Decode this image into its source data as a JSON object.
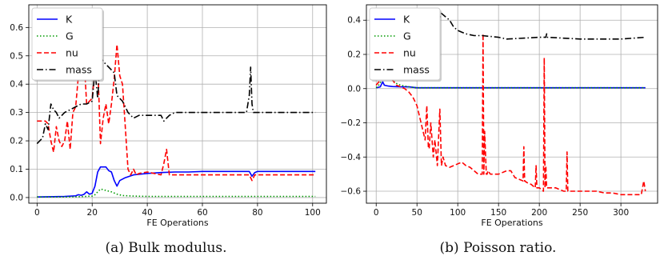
{
  "captions": [
    "(a) Bulk modulus.",
    "(b) Poisson ratio."
  ],
  "chart_data": [
    {
      "type": "line",
      "title": "",
      "xlabel": "FE Operations",
      "ylabel": "",
      "xlim": [
        -3,
        105
      ],
      "ylim": [
        -0.02,
        0.68
      ],
      "xticks": [
        0,
        20,
        40,
        60,
        80,
        100
      ],
      "yticks": [
        0.0,
        0.1,
        0.2,
        0.3,
        0.4,
        0.5,
        0.6
      ],
      "xtick_labels": [
        "0",
        "20",
        "40",
        "60",
        "80",
        "100"
      ],
      "ytick_labels": [
        "0.0",
        "0.1",
        "0.2",
        "0.3",
        "0.4",
        "0.5",
        "0.6"
      ],
      "grid": true,
      "legend": "top-left",
      "series": [
        {
          "name": "K",
          "color": "#0000ff",
          "style": "solid",
          "x": [
            0,
            10,
            14,
            15,
            16,
            17,
            18,
            19,
            20,
            21,
            22,
            23,
            25,
            26,
            27,
            28,
            29,
            30,
            32,
            35,
            40,
            45,
            50,
            55,
            60,
            65,
            70,
            75,
            77,
            78,
            79,
            80,
            85,
            90,
            95,
            100,
            101
          ],
          "y": [
            0.002,
            0.004,
            0.006,
            0.01,
            0.008,
            0.011,
            0.02,
            0.012,
            0.015,
            0.04,
            0.09,
            0.108,
            0.108,
            0.095,
            0.09,
            0.06,
            0.04,
            0.06,
            0.07,
            0.08,
            0.085,
            0.088,
            0.09,
            0.09,
            0.092,
            0.092,
            0.092,
            0.092,
            0.092,
            0.075,
            0.088,
            0.092,
            0.092,
            0.092,
            0.092,
            0.092,
            0.092
          ]
        },
        {
          "name": "G",
          "color": "#009a00",
          "style": "dotted",
          "x": [
            0,
            10,
            15,
            20,
            21,
            22,
            23,
            24,
            25,
            27,
            29,
            31,
            35,
            40,
            50,
            60,
            70,
            80,
            90,
            100,
            101
          ],
          "y": [
            0.002,
            0.002,
            0.003,
            0.005,
            0.01,
            0.02,
            0.03,
            0.028,
            0.025,
            0.02,
            0.012,
            0.007,
            0.005,
            0.004,
            0.004,
            0.004,
            0.004,
            0.004,
            0.004,
            0.004,
            0.004
          ]
        },
        {
          "name": "nu",
          "color": "#ff0000",
          "style": "dashed",
          "x": [
            0,
            3,
            4,
            5,
            6,
            7,
            8,
            9,
            10,
            11,
            12,
            13,
            14,
            15,
            16,
            17,
            18,
            19,
            20,
            21,
            22,
            23,
            24,
            25,
            26,
            27,
            28,
            29,
            30,
            31,
            32,
            33,
            34,
            35,
            36,
            37,
            40,
            45,
            46,
            47,
            48,
            50,
            60,
            70,
            75,
            77,
            78,
            79,
            80,
            90,
            100,
            101
          ],
          "y": [
            0.27,
            0.27,
            0.26,
            0.2,
            0.16,
            0.25,
            0.2,
            0.18,
            0.2,
            0.27,
            0.17,
            0.3,
            0.32,
            0.43,
            0.45,
            0.5,
            0.33,
            0.34,
            0.35,
            0.45,
            0.48,
            0.19,
            0.28,
            0.33,
            0.26,
            0.33,
            0.42,
            0.54,
            0.43,
            0.4,
            0.25,
            0.1,
            0.08,
            0.1,
            0.08,
            0.085,
            0.09,
            0.08,
            0.12,
            0.17,
            0.08,
            0.08,
            0.08,
            0.08,
            0.08,
            0.08,
            0.06,
            0.08,
            0.08,
            0.08,
            0.08,
            0.08
          ]
        },
        {
          "name": "mass",
          "color": "#000000",
          "style": "dashdot",
          "x": [
            0,
            2,
            3,
            4,
            5,
            6,
            7,
            8,
            10,
            12,
            14,
            16,
            18,
            20,
            21,
            22,
            23,
            24,
            26,
            28,
            29,
            30,
            31,
            32,
            33,
            35,
            37,
            40,
            45,
            46,
            47,
            48,
            50,
            55,
            60,
            65,
            70,
            75,
            76,
            77,
            77.5,
            78,
            78.5,
            79,
            80,
            85,
            90,
            95,
            100,
            101
          ],
          "y": [
            0.19,
            0.21,
            0.26,
            0.24,
            0.33,
            0.31,
            0.3,
            0.28,
            0.3,
            0.31,
            0.32,
            0.33,
            0.33,
            0.34,
            0.45,
            0.35,
            0.5,
            0.48,
            0.46,
            0.44,
            0.36,
            0.35,
            0.34,
            0.32,
            0.3,
            0.28,
            0.29,
            0.29,
            0.29,
            0.27,
            0.28,
            0.29,
            0.3,
            0.3,
            0.3,
            0.3,
            0.3,
            0.3,
            0.3,
            0.36,
            0.46,
            0.33,
            0.3,
            0.3,
            0.3,
            0.3,
            0.3,
            0.3,
            0.3,
            0.3
          ]
        }
      ]
    },
    {
      "type": "line",
      "title": "",
      "xlabel": "FE Operations",
      "ylabel": "",
      "xlim": [
        -12,
        345
      ],
      "ylim": [
        -0.67,
        0.49
      ],
      "xticks": [
        0,
        50,
        100,
        150,
        200,
        250,
        300
      ],
      "yticks": [
        -0.6,
        -0.4,
        -0.2,
        0.0,
        0.2,
        0.4
      ],
      "xtick_labels": [
        "0",
        "50",
        "100",
        "150",
        "200",
        "250",
        "300"
      ],
      "ytick_labels": [
        "−0.6",
        "−0.4",
        "−0.2",
        "0.0",
        "0.2",
        "0.4"
      ],
      "grid": true,
      "legend": "top-left",
      "series": [
        {
          "name": "K",
          "color": "#0000ff",
          "style": "solid",
          "x": [
            0,
            5,
            8,
            10,
            15,
            20,
            30,
            40,
            50,
            60,
            100,
            150,
            200,
            250,
            300,
            330
          ],
          "y": [
            0.005,
            0.01,
            0.04,
            0.02,
            0.015,
            0.012,
            0.01,
            0.01,
            0.005,
            0.005,
            0.005,
            0.005,
            0.005,
            0.005,
            0.005,
            0.005
          ]
        },
        {
          "name": "G",
          "color": "#009a00",
          "style": "dotted",
          "x": [
            0,
            5,
            8,
            10,
            15,
            20,
            25,
            30,
            40,
            50,
            60,
            100,
            200,
            330
          ],
          "y": [
            0.005,
            0.03,
            0.1,
            0.05,
            0.08,
            0.05,
            0.03,
            0.02,
            0.01,
            0.005,
            0.005,
            0.005,
            0.005,
            0.005
          ]
        },
        {
          "name": "nu",
          "color": "#ff0000",
          "style": "dashed",
          "x": [
            0,
            5,
            10,
            15,
            20,
            25,
            30,
            35,
            40,
            45,
            50,
            55,
            60,
            62,
            64,
            65,
            67,
            70,
            72,
            75,
            78,
            80,
            82,
            85,
            90,
            95,
            100,
            105,
            110,
            115,
            120,
            125,
            128,
            130,
            131,
            132,
            133,
            135,
            136,
            137,
            140,
            150,
            160,
            165,
            170,
            180,
            181,
            182,
            185,
            190,
            195,
            196,
            197,
            200,
            205,
            206,
            207,
            208,
            209,
            210,
            220,
            230,
            233,
            234,
            235,
            240,
            250,
            260,
            270,
            280,
            290,
            300,
            310,
            320,
            325,
            328,
            330
          ],
          "y": [
            0.02,
            0.05,
            0.06,
            0.08,
            0.05,
            0.02,
            0.01,
            0.0,
            -0.02,
            -0.05,
            -0.1,
            -0.2,
            -0.3,
            -0.1,
            -0.35,
            -0.35,
            -0.2,
            -0.4,
            -0.3,
            -0.45,
            -0.12,
            -0.45,
            -0.4,
            -0.45,
            -0.46,
            -0.45,
            -0.44,
            -0.43,
            -0.45,
            -0.46,
            -0.48,
            -0.5,
            -0.5,
            -0.5,
            0.32,
            -0.5,
            -0.25,
            -0.5,
            -0.5,
            -0.48,
            -0.5,
            -0.5,
            -0.48,
            -0.48,
            -0.52,
            -0.54,
            -0.34,
            -0.54,
            -0.55,
            -0.56,
            -0.58,
            -0.45,
            -0.58,
            -0.58,
            -0.6,
            0.18,
            -0.58,
            -0.45,
            -0.58,
            -0.58,
            -0.58,
            -0.6,
            -0.6,
            -0.37,
            -0.6,
            -0.6,
            -0.6,
            -0.6,
            -0.6,
            -0.61,
            -0.61,
            -0.62,
            -0.62,
            -0.62,
            -0.62,
            -0.54,
            -0.6
          ]
        },
        {
          "name": "mass",
          "color": "#000000",
          "style": "dashdot",
          "x": [
            0,
            10,
            30,
            50,
            60,
            70,
            75,
            80,
            85,
            90,
            95,
            100,
            105,
            110,
            120,
            130,
            150,
            160,
            200,
            208,
            209,
            210,
            250,
            300,
            330
          ],
          "y": [
            0.4,
            0.42,
            0.43,
            0.43,
            0.42,
            0.4,
            0.38,
            0.44,
            0.42,
            0.4,
            0.36,
            0.34,
            0.33,
            0.32,
            0.31,
            0.31,
            0.3,
            0.29,
            0.3,
            0.3,
            0.32,
            0.3,
            0.29,
            0.29,
            0.3
          ]
        }
      ]
    }
  ]
}
